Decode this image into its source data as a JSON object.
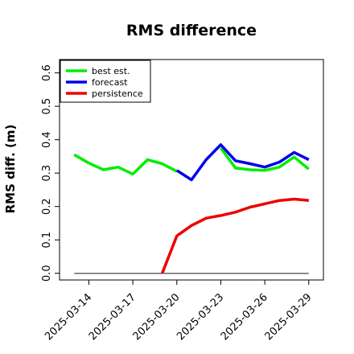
{
  "chart_data": {
    "type": "line",
    "title": "RMS difference",
    "xlabel": "",
    "ylabel": "RMS diff. (m)",
    "x": [
      "2025-03-13",
      "2025-03-14",
      "2025-03-15",
      "2025-03-16",
      "2025-03-17",
      "2025-03-18",
      "2025-03-19",
      "2025-03-20",
      "2025-03-21",
      "2025-03-22",
      "2025-03-23",
      "2025-03-24",
      "2025-03-25",
      "2025-03-26",
      "2025-03-27",
      "2025-03-28",
      "2025-03-29"
    ],
    "xlim": [
      "2025-03-12",
      "2025-03-30"
    ],
    "ylim": [
      -0.02,
      0.64
    ],
    "xticks": [
      "2025-03-14",
      "2025-03-17",
      "2025-03-20",
      "2025-03-23",
      "2025-03-26",
      "2025-03-29"
    ],
    "highlighted_xtick": "2025-03-20",
    "highlight_color": "#1a7a1a",
    "yticks": [
      "0.0",
      "0.1",
      "0.2",
      "0.3",
      "0.4",
      "0.5",
      "0.6"
    ],
    "legend_position": "top-left",
    "grid": false,
    "baseline": {
      "y": 0.0,
      "color": "#666666"
    },
    "series": [
      {
        "name": "best est.",
        "color": "#00ee00",
        "values": [
          0.355,
          0.33,
          0.31,
          0.318,
          0.297,
          0.34,
          0.328,
          0.305,
          null,
          null,
          0.375,
          0.315,
          0.31,
          0.308,
          0.318,
          0.348,
          0.312
        ]
      },
      {
        "name": "forecast",
        "color": "#0000ee",
        "values": [
          null,
          null,
          null,
          null,
          null,
          null,
          null,
          0.308,
          0.28,
          0.34,
          0.385,
          0.337,
          0.328,
          0.318,
          0.333,
          0.362,
          0.34
        ]
      },
      {
        "name": "persistence",
        "color": "#ee0000",
        "values": [
          null,
          null,
          null,
          null,
          null,
          null,
          0.0,
          0.112,
          0.143,
          0.165,
          0.173,
          0.183,
          0.198,
          0.208,
          0.218,
          0.222,
          0.218
        ]
      }
    ]
  }
}
